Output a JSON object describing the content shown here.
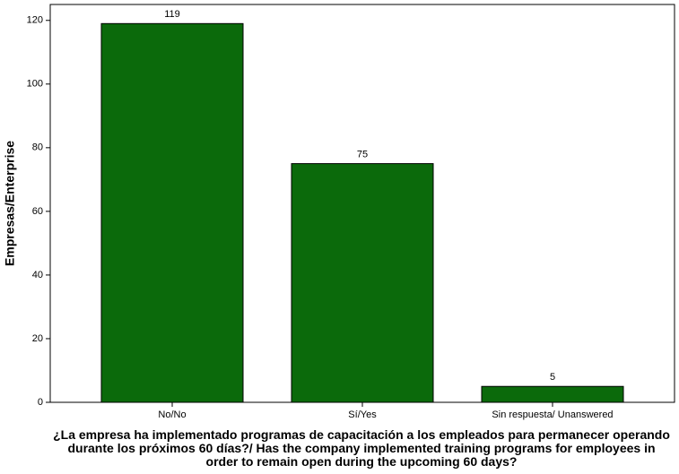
{
  "chart_data": {
    "type": "bar",
    "x_label": "¿La empresa ha implementado programas de capacitación a los empleados para permanecer operando durante los próximos 60 días?/ Has the company implemented training programs for employees in order to remain open during the upcoming 60 days?",
    "y_label": "Empresas/Enterprise",
    "categories": [
      "No/No",
      "Sí/Yes",
      "Sin respuesta/ Unanswered"
    ],
    "values": [
      119,
      75,
      5
    ],
    "color": "#0b6a0b",
    "ylim": [
      0,
      125
    ],
    "yticks": [
      0,
      20,
      40,
      60,
      80,
      100,
      120
    ],
    "grid": false
  }
}
